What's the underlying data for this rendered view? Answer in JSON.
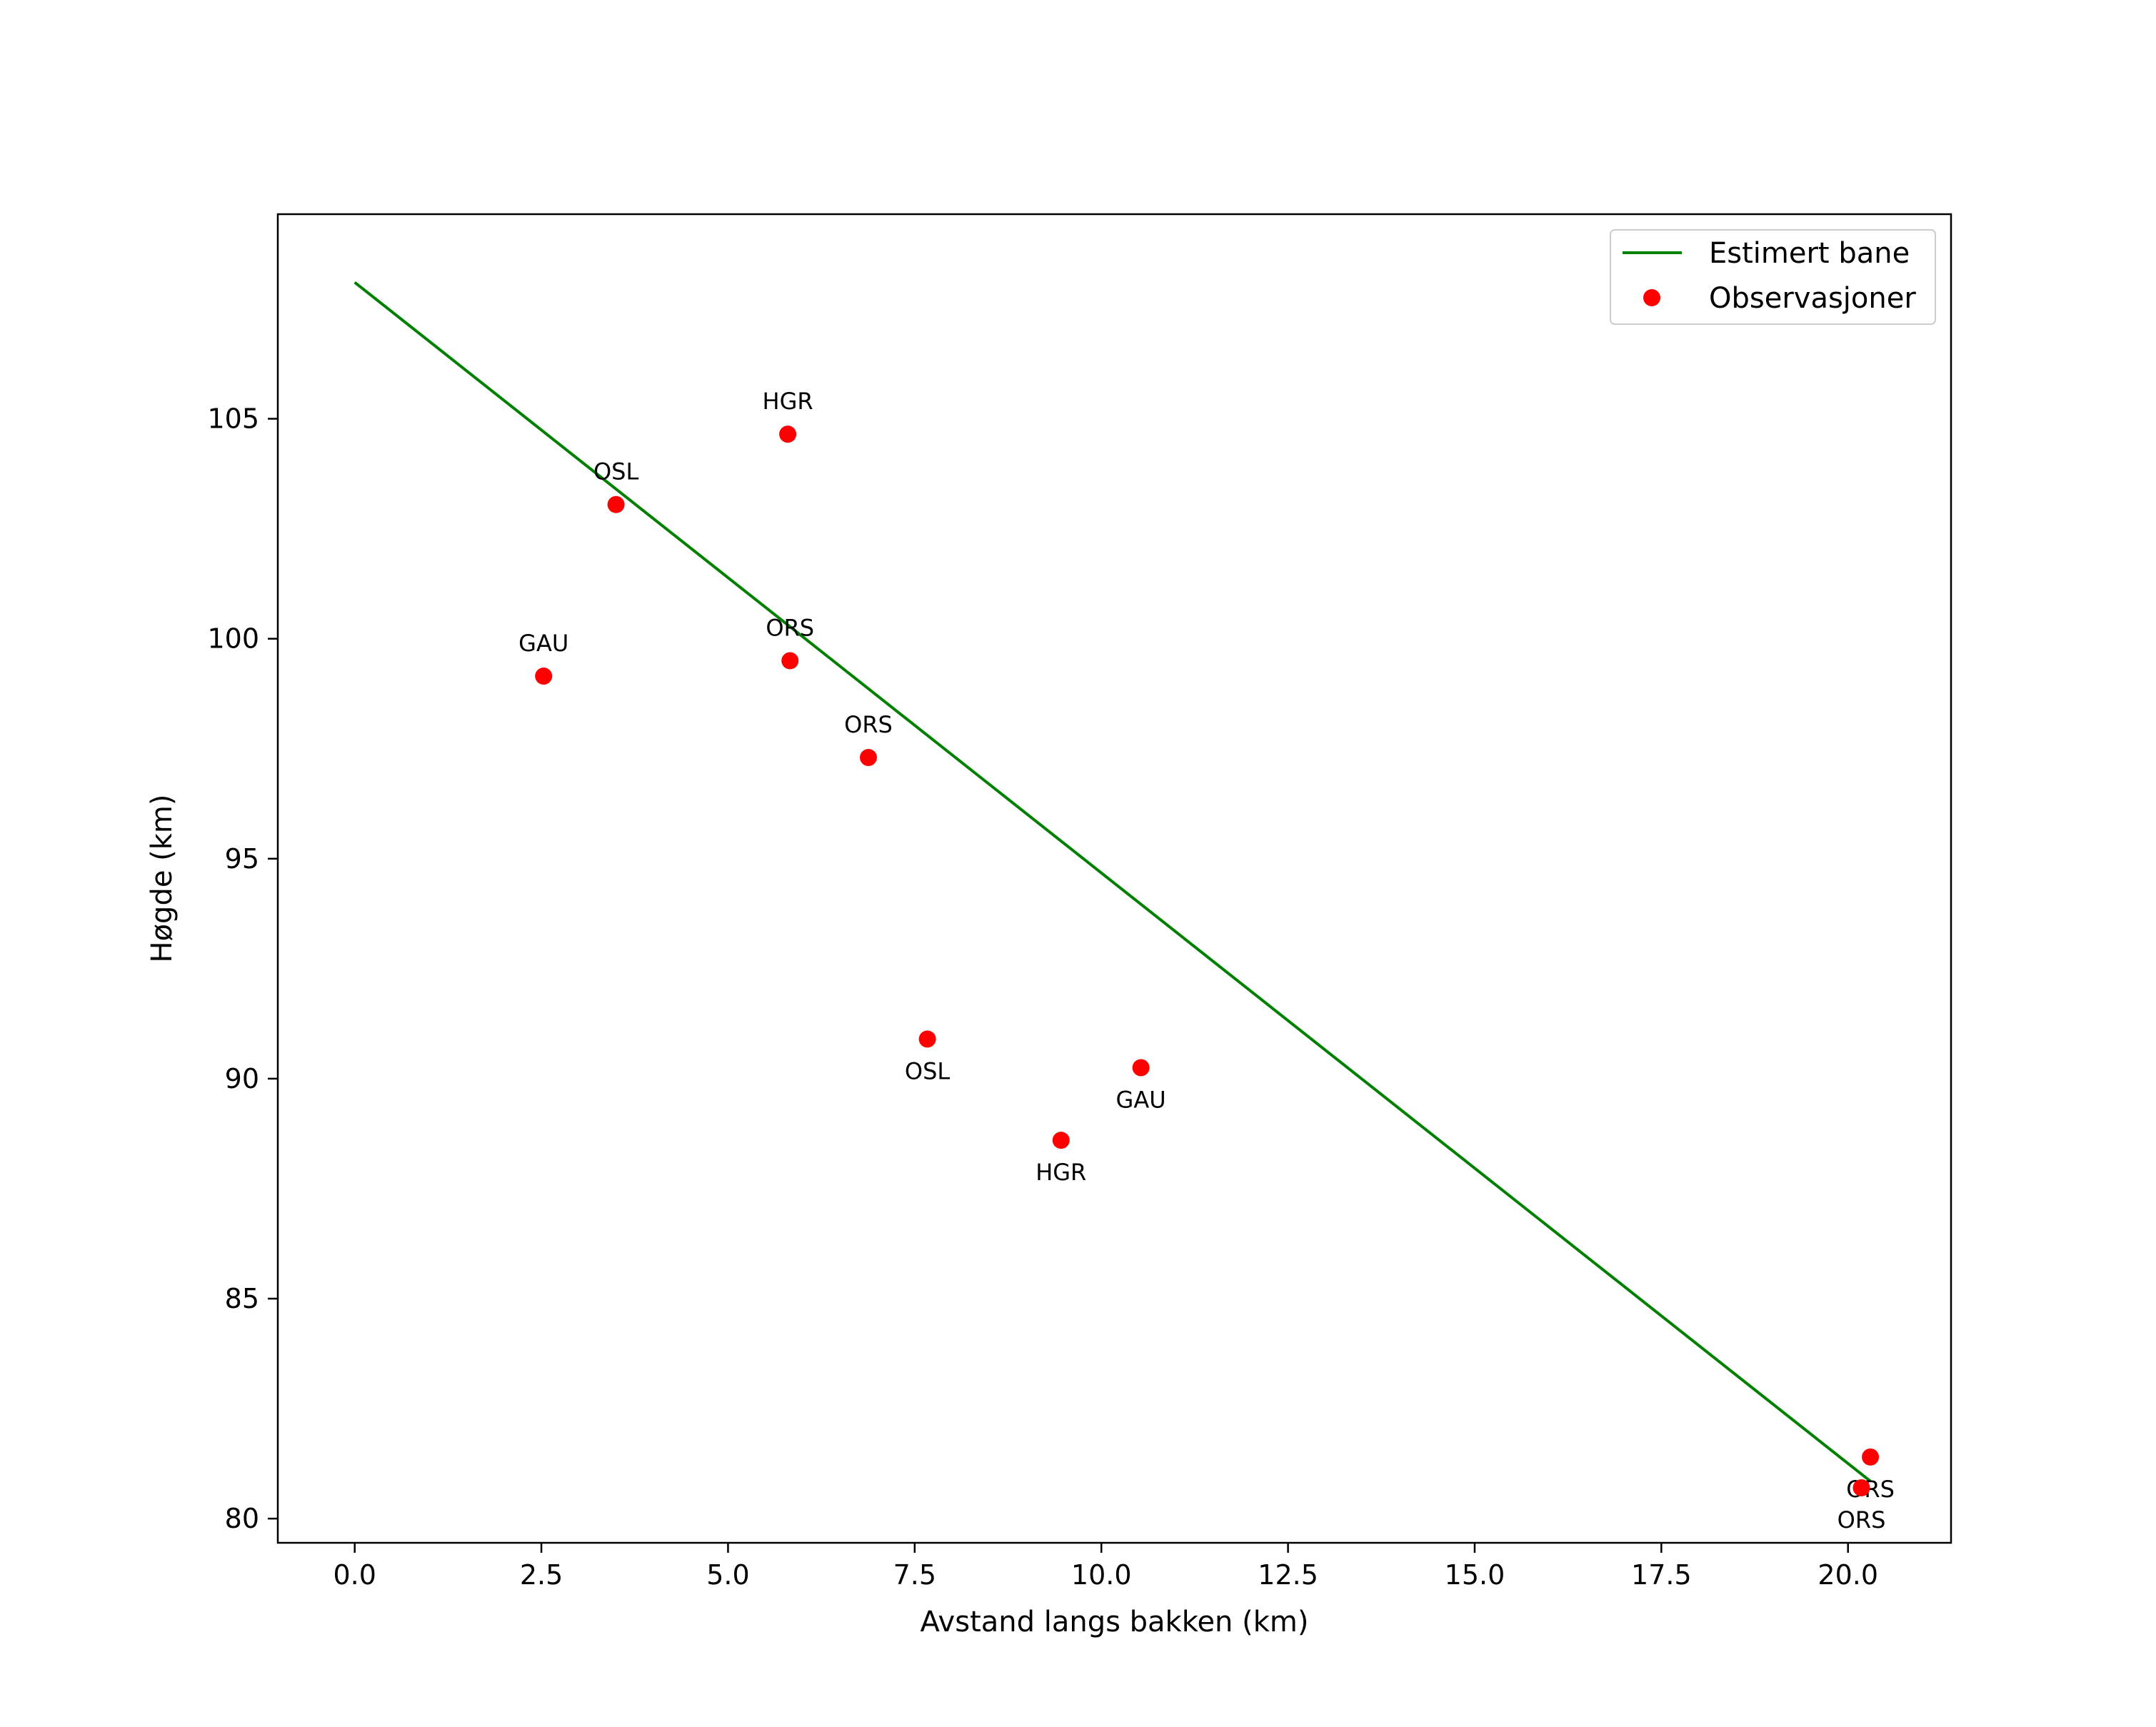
{
  "chart_data": {
    "type": "line+scatter",
    "title": "",
    "xlabel": "Avstand langs bakken (km)",
    "ylabel": "Høgde (km)",
    "xlim": [
      -1.03,
      21.38
    ],
    "ylim": [
      79.45,
      109.65
    ],
    "xticks": [
      0.0,
      2.5,
      5.0,
      7.5,
      10.0,
      12.5,
      15.0,
      17.5,
      20.0
    ],
    "xtick_labels": [
      "0.0",
      "2.5",
      "5.0",
      "7.5",
      "10.0",
      "12.5",
      "15.0",
      "17.5",
      "20.0"
    ],
    "yticks": [
      80,
      85,
      90,
      95,
      100,
      105
    ],
    "ytick_labels": [
      "80",
      "85",
      "90",
      "95",
      "100",
      "105"
    ],
    "grid": false,
    "legend": {
      "placement": "upper right",
      "entries": [
        "Estimert bane",
        "Observasjoner"
      ]
    },
    "line": {
      "name": "Estimert bane",
      "color": "#008000",
      "x": [
        0.0,
        20.3
      ],
      "y": [
        108.1,
        80.85
      ]
    },
    "points": {
      "name": "Observasjoner",
      "color": "#ff0000",
      "data": [
        {
          "x": 3.5,
          "y": 103.05,
          "label": "OSL",
          "label_pos": "above"
        },
        {
          "x": 5.8,
          "y": 104.65,
          "label": "HGR",
          "label_pos": "above"
        },
        {
          "x": 2.53,
          "y": 99.15,
          "label": "GAU",
          "label_pos": "above"
        },
        {
          "x": 5.83,
          "y": 99.5,
          "label": "ORS",
          "label_pos": "above"
        },
        {
          "x": 6.88,
          "y": 97.3,
          "label": "ORS",
          "label_pos": "above"
        },
        {
          "x": 7.67,
          "y": 90.9,
          "label": "OSL",
          "label_pos": "below"
        },
        {
          "x": 10.53,
          "y": 90.25,
          "label": "GAU",
          "label_pos": "below"
        },
        {
          "x": 9.46,
          "y": 88.6,
          "label": "HGR",
          "label_pos": "below"
        },
        {
          "x": 20.3,
          "y": 81.4,
          "label": "ORS",
          "label_pos": "below"
        },
        {
          "x": 20.18,
          "y": 80.7,
          "label": "ORS",
          "label_pos": "below"
        }
      ]
    }
  }
}
